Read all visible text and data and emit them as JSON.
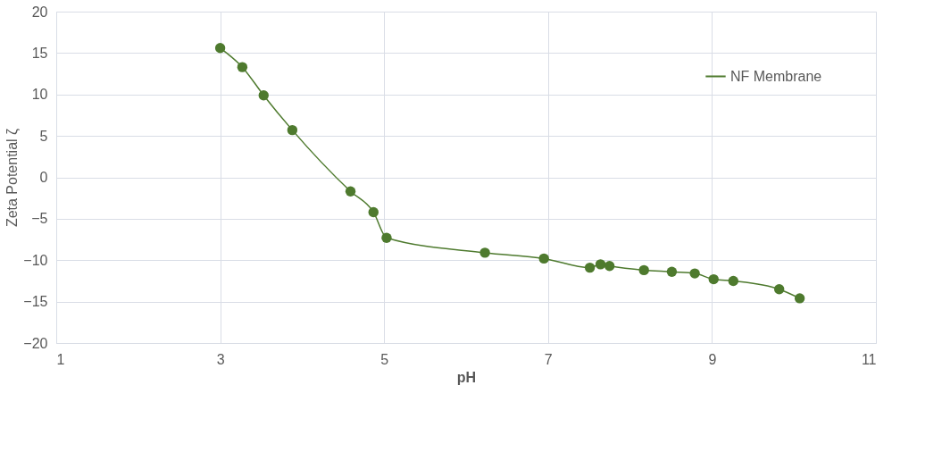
{
  "chart_data": {
    "type": "line",
    "xlabel": "pH",
    "ylabel": "Zeta Potential ζ",
    "xlim": [
      1,
      11
    ],
    "xticks": [
      1,
      3,
      5,
      7,
      9,
      11
    ],
    "ylim": [
      -20,
      20
    ],
    "yticks": [
      -20,
      -15,
      -10,
      -5,
      0,
      5,
      10,
      15,
      20
    ],
    "grid": true,
    "legend": "top right",
    "marker": "circle",
    "line_style": "solid",
    "series": [
      {
        "name": "NF Membrane",
        "color": "#4e7a2e",
        "x": [
          3.0,
          3.27,
          3.53,
          3.88,
          4.59,
          4.87,
          5.03,
          6.23,
          6.95,
          7.51,
          7.64,
          7.75,
          8.17,
          8.51,
          8.79,
          9.02,
          9.26,
          9.82,
          10.07
        ],
        "values": [
          15.6,
          13.3,
          9.9,
          5.7,
          -1.7,
          -4.2,
          -7.3,
          -9.1,
          -9.8,
          -10.9,
          -10.5,
          -10.7,
          -11.2,
          -11.4,
          -11.6,
          -12.3,
          -12.5,
          -13.5,
          -14.6
        ]
      }
    ]
  }
}
